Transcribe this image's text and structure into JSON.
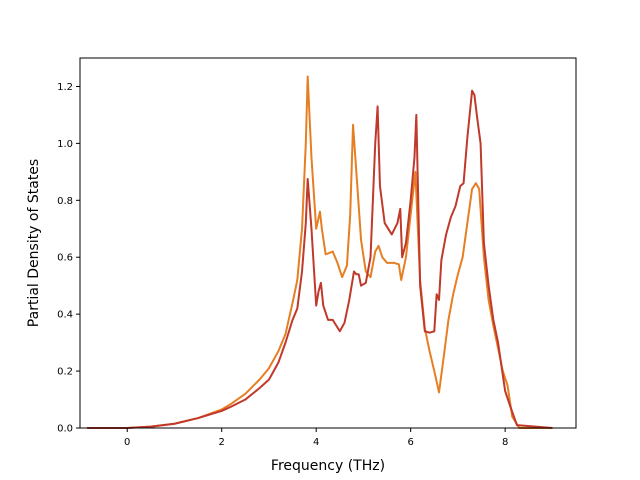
{
  "chart_data": {
    "type": "line",
    "title": "",
    "xlabel": "Frequency (THz)",
    "ylabel": "Partial Density of States",
    "xlim": [
      -1.0,
      9.5
    ],
    "ylim": [
      0.0,
      1.3
    ],
    "xticks": [
      0,
      2,
      4,
      6,
      8
    ],
    "yticks": [
      0.0,
      0.2,
      0.4,
      0.6,
      0.8,
      1.0,
      1.2
    ],
    "xtick_labels": [
      "0",
      "2",
      "4",
      "6",
      "8"
    ],
    "ytick_labels": [
      "0.0",
      "0.2",
      "0.4",
      "0.6",
      "0.8",
      "1.0",
      "1.2"
    ],
    "grid": false,
    "legend": false,
    "series": [
      {
        "color": "#e67e22",
        "x": [
          -0.85,
          0.0,
          0.5,
          1.0,
          1.5,
          2.0,
          2.2,
          2.5,
          2.8,
          3.0,
          3.2,
          3.35,
          3.5,
          3.6,
          3.7,
          3.78,
          3.82,
          3.9,
          4.0,
          4.08,
          4.12,
          4.2,
          4.35,
          4.45,
          4.55,
          4.65,
          4.72,
          4.78,
          4.85,
          4.95,
          5.05,
          5.15,
          5.25,
          5.32,
          5.4,
          5.5,
          5.65,
          5.75,
          5.8,
          5.9,
          6.0,
          6.1,
          6.2,
          6.3,
          6.4,
          6.5,
          6.6,
          6.7,
          6.8,
          6.9,
          7.0,
          7.1,
          7.2,
          7.3,
          7.38,
          7.45,
          7.55,
          7.65,
          7.75,
          7.85,
          7.95,
          8.05,
          8.15,
          8.3,
          9.0
        ],
        "y": [
          0.0,
          0.0,
          0.005,
          0.015,
          0.035,
          0.065,
          0.085,
          0.12,
          0.17,
          0.21,
          0.27,
          0.33,
          0.44,
          0.52,
          0.7,
          1.0,
          1.235,
          0.95,
          0.7,
          0.76,
          0.7,
          0.61,
          0.62,
          0.58,
          0.53,
          0.57,
          0.75,
          1.065,
          0.9,
          0.66,
          0.55,
          0.53,
          0.62,
          0.64,
          0.6,
          0.58,
          0.58,
          0.575,
          0.52,
          0.6,
          0.75,
          0.9,
          0.52,
          0.35,
          0.27,
          0.2,
          0.125,
          0.25,
          0.38,
          0.47,
          0.54,
          0.6,
          0.72,
          0.84,
          0.86,
          0.84,
          0.6,
          0.45,
          0.36,
          0.28,
          0.2,
          0.15,
          0.04,
          0.0,
          0.0
        ]
      },
      {
        "color": "#c0392b",
        "x": [
          -0.85,
          0.0,
          0.5,
          1.0,
          1.5,
          2.0,
          2.2,
          2.5,
          2.8,
          3.0,
          3.2,
          3.35,
          3.5,
          3.6,
          3.7,
          3.78,
          3.82,
          3.9,
          4.0,
          4.05,
          4.1,
          4.15,
          4.25,
          4.35,
          4.5,
          4.6,
          4.7,
          4.8,
          4.85,
          4.9,
          4.95,
          5.05,
          5.15,
          5.25,
          5.3,
          5.35,
          5.45,
          5.6,
          5.72,
          5.78,
          5.82,
          5.9,
          6.0,
          6.08,
          6.12,
          6.2,
          6.3,
          6.4,
          6.5,
          6.55,
          6.6,
          6.65,
          6.75,
          6.85,
          6.95,
          7.05,
          7.12,
          7.2,
          7.3,
          7.35,
          7.4,
          7.48,
          7.55,
          7.65,
          7.75,
          7.85,
          8.0,
          8.1,
          8.25,
          9.0
        ],
        "y": [
          0.0,
          0.0,
          0.005,
          0.015,
          0.035,
          0.06,
          0.075,
          0.1,
          0.14,
          0.17,
          0.23,
          0.3,
          0.38,
          0.42,
          0.55,
          0.72,
          0.875,
          0.7,
          0.43,
          0.48,
          0.51,
          0.43,
          0.38,
          0.38,
          0.34,
          0.37,
          0.45,
          0.55,
          0.54,
          0.54,
          0.5,
          0.51,
          0.6,
          1.0,
          1.13,
          0.85,
          0.72,
          0.68,
          0.72,
          0.77,
          0.6,
          0.65,
          0.8,
          0.95,
          1.1,
          0.5,
          0.34,
          0.335,
          0.34,
          0.47,
          0.45,
          0.59,
          0.68,
          0.74,
          0.78,
          0.85,
          0.86,
          1.02,
          1.185,
          1.17,
          1.1,
          1.0,
          0.65,
          0.5,
          0.38,
          0.3,
          0.13,
          0.08,
          0.01,
          0.0
        ]
      }
    ]
  }
}
